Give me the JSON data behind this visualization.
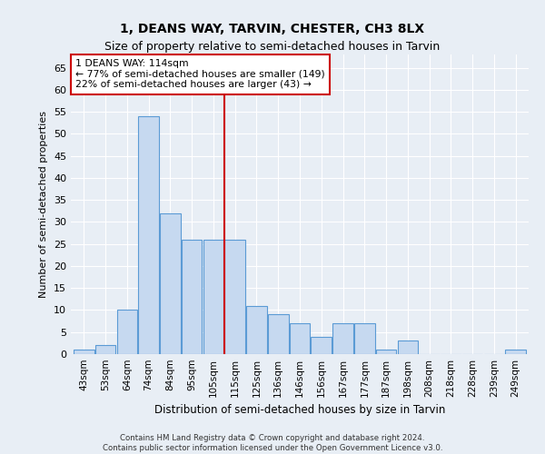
{
  "title_line1": "1, DEANS WAY, TARVIN, CHESTER, CH3 8LX",
  "title_line2": "Size of property relative to semi-detached houses in Tarvin",
  "xlabel": "Distribution of semi-detached houses by size in Tarvin",
  "ylabel": "Number of semi-detached properties",
  "categories": [
    "43sqm",
    "53sqm",
    "64sqm",
    "74sqm",
    "84sqm",
    "95sqm",
    "105sqm",
    "115sqm",
    "125sqm",
    "136sqm",
    "146sqm",
    "156sqm",
    "167sqm",
    "177sqm",
    "187sqm",
    "198sqm",
    "208sqm",
    "218sqm",
    "228sqm",
    "239sqm",
    "249sqm"
  ],
  "values": [
    1,
    2,
    10,
    54,
    32,
    26,
    26,
    26,
    11,
    9,
    7,
    4,
    7,
    7,
    1,
    3,
    0,
    0,
    0,
    0,
    1
  ],
  "bar_color": "#c6d9f0",
  "bar_edge_color": "#5b9bd5",
  "property_line_index": 7,
  "annotation_title": "1 DEANS WAY: 114sqm",
  "annotation_line2": "← 77% of semi-detached houses are smaller (149)",
  "annotation_line3": "22% of semi-detached houses are larger (43) →",
  "annotation_box_color": "#ffffff",
  "annotation_box_edge": "#cc0000",
  "vline_color": "#cc0000",
  "ylim": [
    0,
    68
  ],
  "yticks": [
    0,
    5,
    10,
    15,
    20,
    25,
    30,
    35,
    40,
    45,
    50,
    55,
    60,
    65
  ],
  "footnote1": "Contains HM Land Registry data © Crown copyright and database right 2024.",
  "footnote2": "Contains public sector information licensed under the Open Government Licence v3.0.",
  "bg_color": "#e8eef5",
  "grid_color": "#ffffff",
  "title_fontsize": 10,
  "subtitle_fontsize": 9
}
